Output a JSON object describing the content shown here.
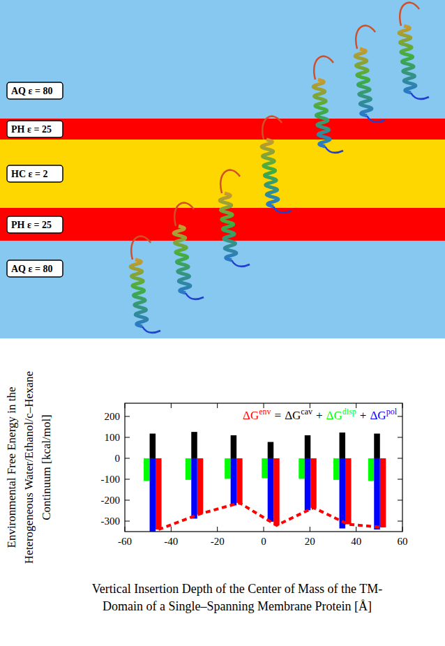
{
  "diagram": {
    "layers": [
      {
        "label": "AQ ε = 80",
        "color": "#87c8f0"
      },
      {
        "label": "PH ε = 25",
        "color": "#ff0000"
      },
      {
        "label": "HC  ε = 2",
        "color": "#ffd700"
      },
      {
        "label": "PH ε = 25",
        "color": "#ff0000"
      },
      {
        "label": "AQ ε = 80",
        "color": "#87c8f0"
      }
    ]
  },
  "chart_data": {
    "type": "bar",
    "ylabel": [
      "Environmental Free Energy in the",
      "Heterogeneous Water/Ethanol/c–Hexane",
      "Continuum [kcal/mol]"
    ],
    "xlabel": [
      "Vertical Insertion Depth of the Center of Mass of the TM-",
      "Domain of a Single–Spanning Membrane Protein [Å]"
    ],
    "x": [
      -48,
      -30,
      -13,
      3,
      19,
      34,
      49
    ],
    "series": [
      {
        "name": "ΔGenv",
        "color": "#ff0000",
        "type": "bar",
        "line_style": "dashed",
        "values": [
          -340,
          -265,
          -213,
          -320,
          -236,
          -315,
          -330
        ]
      },
      {
        "name": "ΔGcav",
        "color": "#000000",
        "type": "bar",
        "values": [
          118,
          126,
          110,
          78,
          110,
          123,
          118
        ]
      },
      {
        "name": "ΔGdisp",
        "color": "#00ff00",
        "type": "bar",
        "values": [
          -108,
          -103,
          -98,
          -95,
          -98,
          -103,
          -108
        ]
      },
      {
        "name": "ΔGpol",
        "color": "#0000ff",
        "type": "bar",
        "values": [
          -350,
          -288,
          -225,
          -303,
          -248,
          -335,
          -340
        ]
      }
    ],
    "legend_operators": [
      "=",
      "+",
      "+"
    ],
    "xlim": [
      -60,
      60
    ],
    "xticks": [
      -60,
      -40,
      -20,
      0,
      20,
      40,
      60
    ],
    "ylim": [
      -350,
      263
    ],
    "yticks": [
      -300,
      -200,
      -100,
      0,
      100,
      200
    ],
    "legend": "top-right",
    "grid": false
  }
}
